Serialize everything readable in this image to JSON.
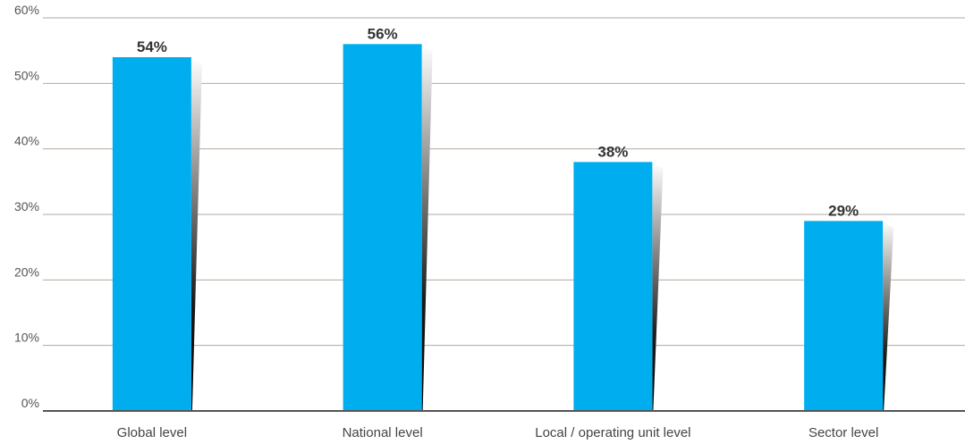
{
  "chart_data": {
    "type": "bar",
    "title": "",
    "xlabel": "",
    "ylabel": "",
    "categories": [
      "Global level",
      "National level",
      "Local / operating unit level",
      "Sector level"
    ],
    "values": [
      54,
      56,
      38,
      29
    ],
    "data_labels": [
      "54%",
      "56%",
      "38%",
      "29%"
    ],
    "ylim": [
      0,
      60
    ],
    "yticks": [
      0,
      10,
      20,
      30,
      40,
      50,
      60
    ],
    "ytick_labels": [
      "0%",
      "10%",
      "20%",
      "30%",
      "40%",
      "50%",
      "60%"
    ],
    "grid": true,
    "legend": "none",
    "colors": {
      "bar": "#00aeef",
      "grid": "#b5aaa0",
      "axis": "#555555"
    }
  }
}
